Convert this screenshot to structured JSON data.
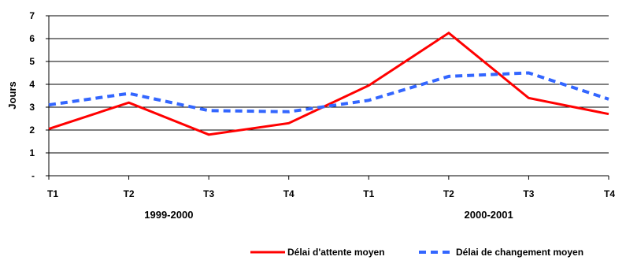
{
  "chart_data": {
    "type": "line",
    "categories": [
      "T1",
      "T2",
      "T3",
      "T4",
      "T1",
      "T2",
      "T3",
      "T4"
    ],
    "groups": [
      {
        "label": "1999-2000",
        "from": 0,
        "to": 3
      },
      {
        "label": "2000-2001",
        "from": 4,
        "to": 7
      }
    ],
    "ylabel": "Jours",
    "ylim": [
      0,
      7
    ],
    "yticks": [
      {
        "value": 0,
        "label": "-"
      },
      {
        "value": 1,
        "label": "1"
      },
      {
        "value": 2,
        "label": "2"
      },
      {
        "value": 3,
        "label": "3"
      },
      {
        "value": 4,
        "label": "4"
      },
      {
        "value": 5,
        "label": "5"
      },
      {
        "value": 6,
        "label": "6"
      },
      {
        "value": 7,
        "label": "7"
      }
    ],
    "grid": true,
    "legend_position": "bottom-right",
    "series": [
      {
        "name": "Délai d'attente moyen",
        "color": "#ff0000",
        "style": "solid",
        "values": [
          2.05,
          3.2,
          1.8,
          2.3,
          3.95,
          6.25,
          3.4,
          2.7
        ]
      },
      {
        "name": "Délai de changement moyen",
        "color": "#3366ff",
        "style": "dashed",
        "values": [
          3.1,
          3.6,
          2.85,
          2.8,
          3.3,
          4.35,
          4.5,
          3.35
        ]
      }
    ]
  }
}
